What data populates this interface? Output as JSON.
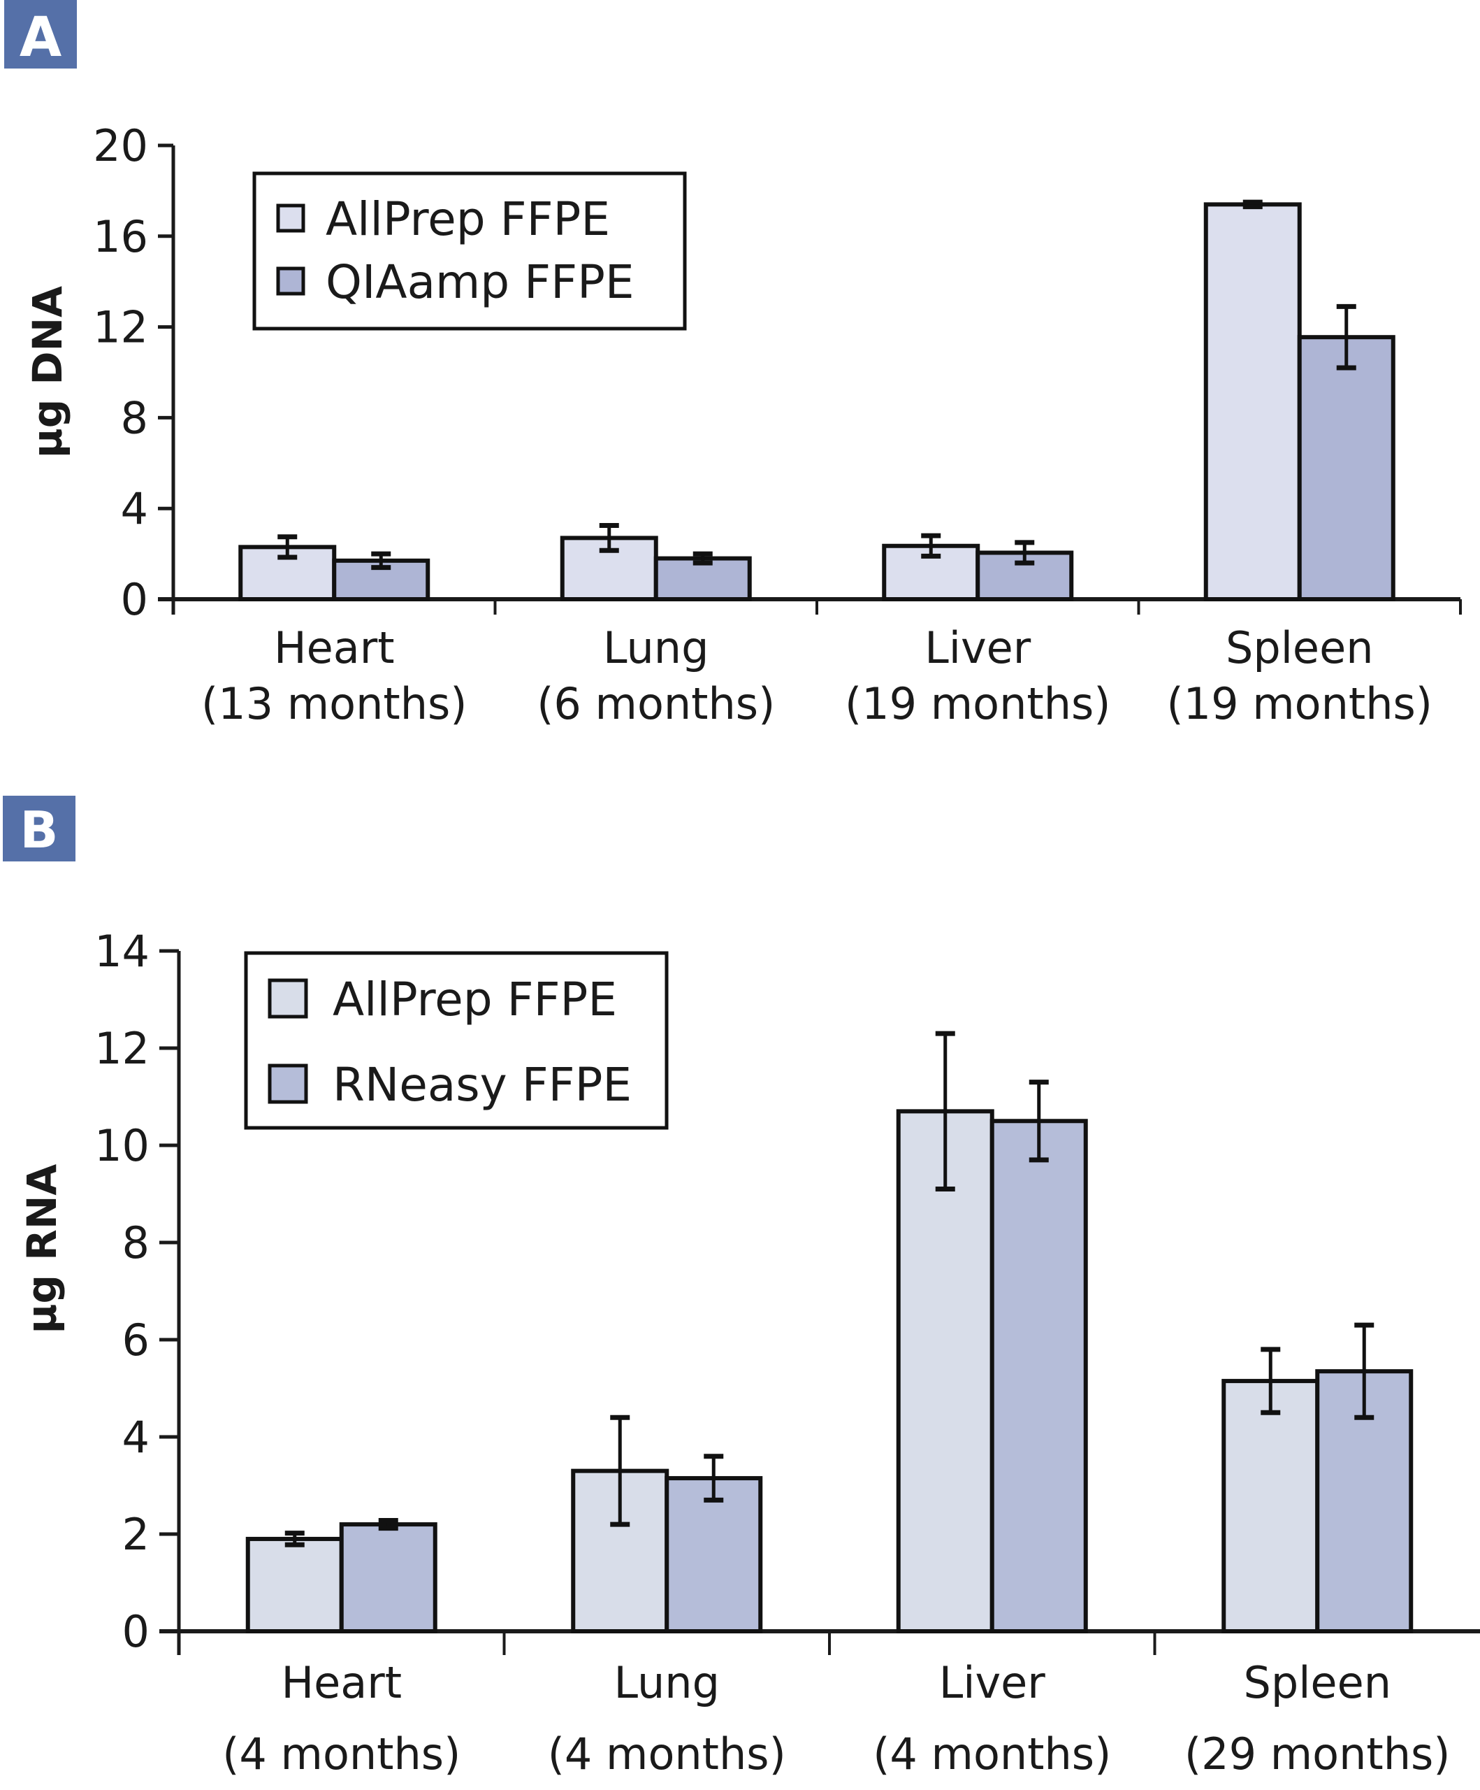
{
  "chart_data": [
    {
      "panel": "A",
      "type": "bar",
      "title": "",
      "xlabel": "",
      "ylabel": "µg DNA",
      "ylim": [
        0,
        20
      ],
      "yticks": [
        0,
        4,
        8,
        12,
        16,
        20
      ],
      "grid": false,
      "legend_position": "top-left",
      "categories": [
        {
          "name": "Heart",
          "sub": "(13 months)"
        },
        {
          "name": "Lung",
          "sub": "(6 months)"
        },
        {
          "name": "Liver",
          "sub": "(19 months)"
        },
        {
          "name": "Spleen",
          "sub": "(19 months)"
        }
      ],
      "series": [
        {
          "name": "AllPrep FFPE",
          "color": "#dcdfee",
          "values": [
            2.3,
            2.7,
            2.35,
            17.4
          ],
          "errors": [
            0.45,
            0.55,
            0.45,
            0.1
          ]
        },
        {
          "name": "QIAamp FFPE",
          "color": "#aeb5d5",
          "values": [
            1.7,
            1.8,
            2.05,
            11.55
          ],
          "errors": [
            0.3,
            0.2,
            0.45,
            1.35
          ]
        }
      ]
    },
    {
      "panel": "B",
      "type": "bar",
      "title": "",
      "xlabel": "",
      "ylabel": "µg RNA",
      "ylim": [
        0,
        14
      ],
      "yticks": [
        0,
        2,
        4,
        6,
        8,
        10,
        12,
        14
      ],
      "grid": false,
      "legend_position": "top-left",
      "categories": [
        {
          "name": "Heart",
          "sub": "(4 months)"
        },
        {
          "name": "Lung",
          "sub": "(4 months)"
        },
        {
          "name": "Liver",
          "sub": "(4 months)"
        },
        {
          "name": "Spleen",
          "sub": "(29 months)"
        }
      ],
      "series": [
        {
          "name": "AllPrep FFPE",
          "color": "#d8dde9",
          "values": [
            1.9,
            3.3,
            10.7,
            5.15
          ],
          "errors": [
            0.12,
            1.1,
            1.6,
            0.65
          ]
        },
        {
          "name": "RNeasy FFPE",
          "color": "#b5bdd9",
          "values": [
            2.2,
            3.15,
            10.5,
            5.35
          ],
          "errors": [
            0.08,
            0.45,
            0.8,
            0.95
          ]
        }
      ]
    }
  ],
  "panel_badge_color": "#5570a8"
}
